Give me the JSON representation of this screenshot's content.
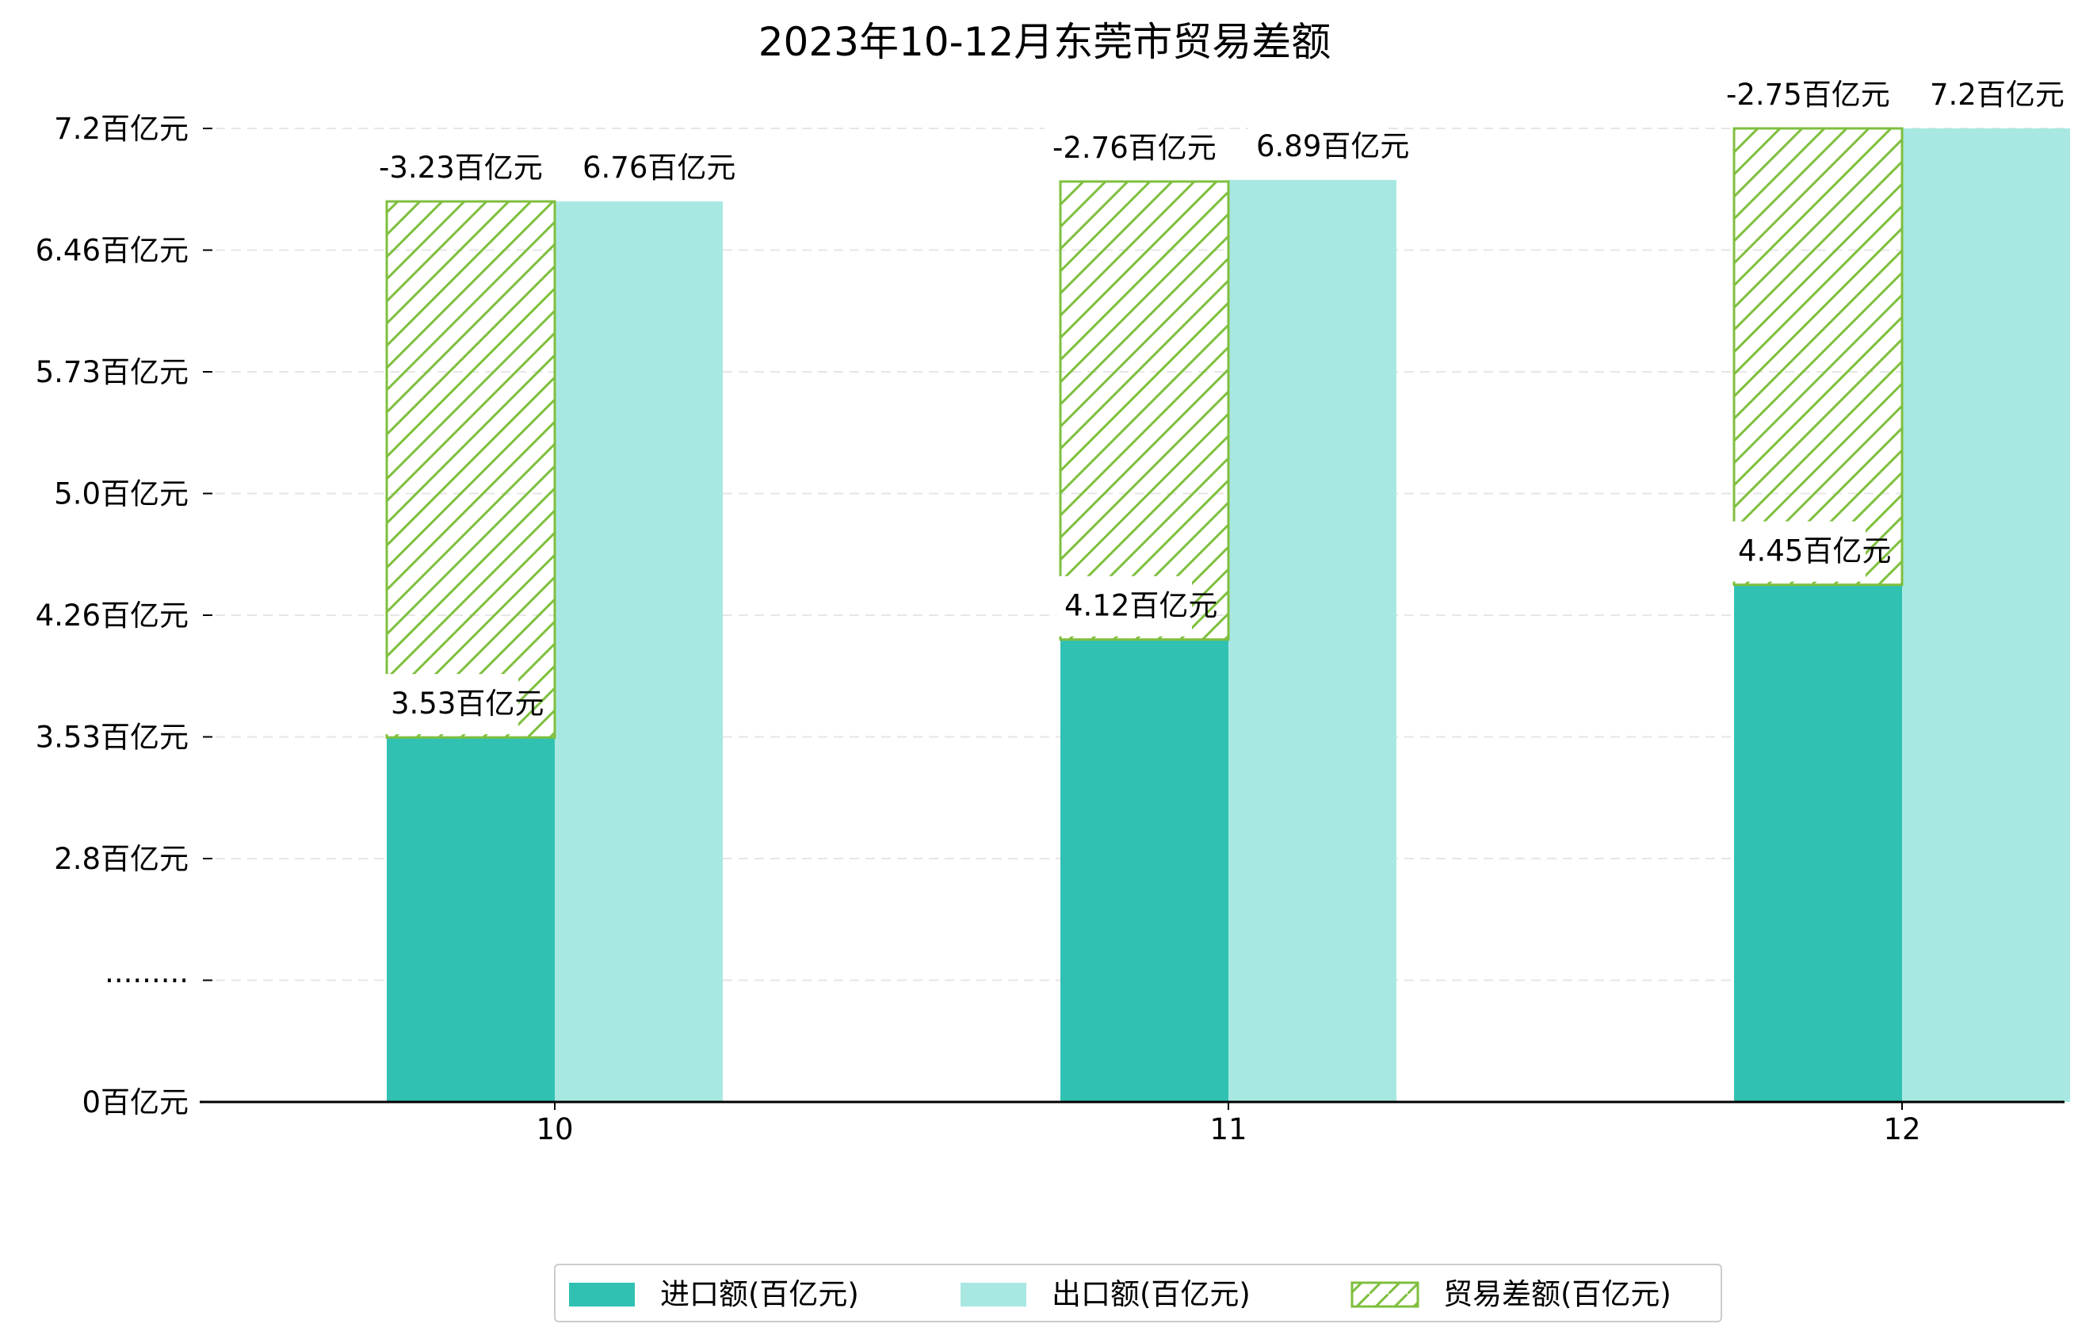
{
  "chart_data": {
    "type": "bar",
    "title": "2023年10-12月东莞市贸易差额",
    "categories": [
      "10",
      "11",
      "12"
    ],
    "series": [
      {
        "name": "进口额(百亿元)",
        "values": [
          3.53,
          4.12,
          4.45
        ],
        "labels": [
          "3.53百亿元",
          "4.12百亿元",
          "4.45百亿元"
        ],
        "color": "#31c1b3"
      },
      {
        "name": "出口额(百亿元)",
        "values": [
          6.76,
          6.89,
          7.2
        ],
        "labels": [
          "6.76百亿元",
          "6.89百亿元",
          "7.2百亿元"
        ],
        "color": "#a9e8e2"
      },
      {
        "name": "贸易差额(百亿元)",
        "values": [
          -3.23,
          -2.76,
          -2.75
        ],
        "labels": [
          "-3.23百亿元",
          "-2.76百亿元",
          "-2.75百亿元"
        ],
        "color": "#7fbf3f",
        "pattern": "hatch"
      }
    ],
    "yticks": [
      "0百亿元",
      "·········",
      "2.8百亿元",
      "3.53百亿元",
      "4.26百亿元",
      "5.0百亿元",
      "5.73百亿元",
      "6.46百亿元",
      "7.2百亿元"
    ],
    "ylim": [
      0,
      7.2
    ],
    "axis_break": true,
    "grid": "horizontal dashed",
    "legend": "bottom-center"
  }
}
